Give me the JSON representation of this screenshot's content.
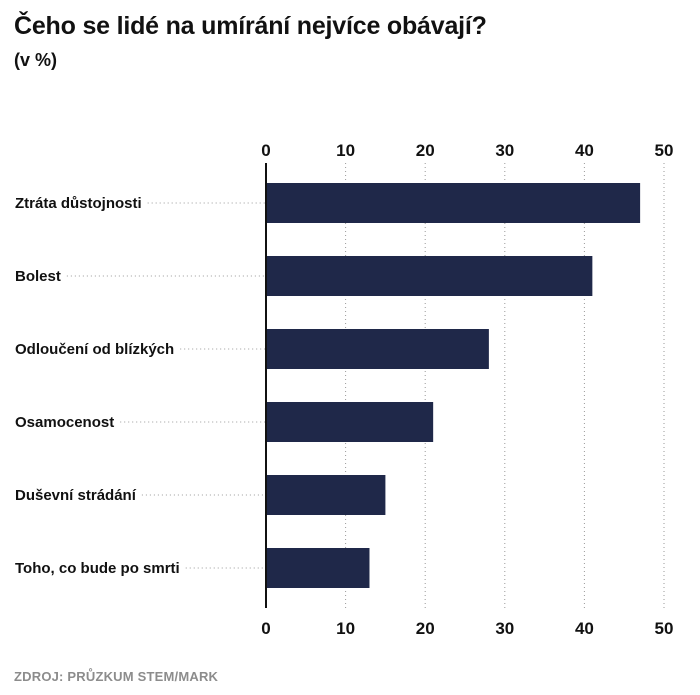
{
  "title": "Čeho se lidé na umírání nejvíce obávají?",
  "subtitle": "(v %)",
  "source": "ZDROJ: PRŮZKUM STEM/MARK",
  "colors": {
    "bar": "#1f2849",
    "axis": "#111111",
    "grid": "#9a9a9a"
  },
  "chart_data": {
    "type": "bar",
    "orientation": "horizontal",
    "title": "Čeho se lidé na umírání nejvíce obávají?",
    "subtitle": "(v %)",
    "categories": [
      "Ztráta důstojnosti",
      "Bolest",
      "Odloučení od blízkých",
      "Osamocenost",
      "Duševní strádání",
      "Toho, co bude po smrti"
    ],
    "values": [
      47,
      41,
      28,
      21,
      15,
      13
    ],
    "xlim": [
      0,
      50
    ],
    "xticks": [
      "0",
      "10",
      "20",
      "30",
      "40",
      "50"
    ],
    "tick_positions": "top and bottom",
    "grid": "dotted vertical",
    "legend": "none"
  }
}
